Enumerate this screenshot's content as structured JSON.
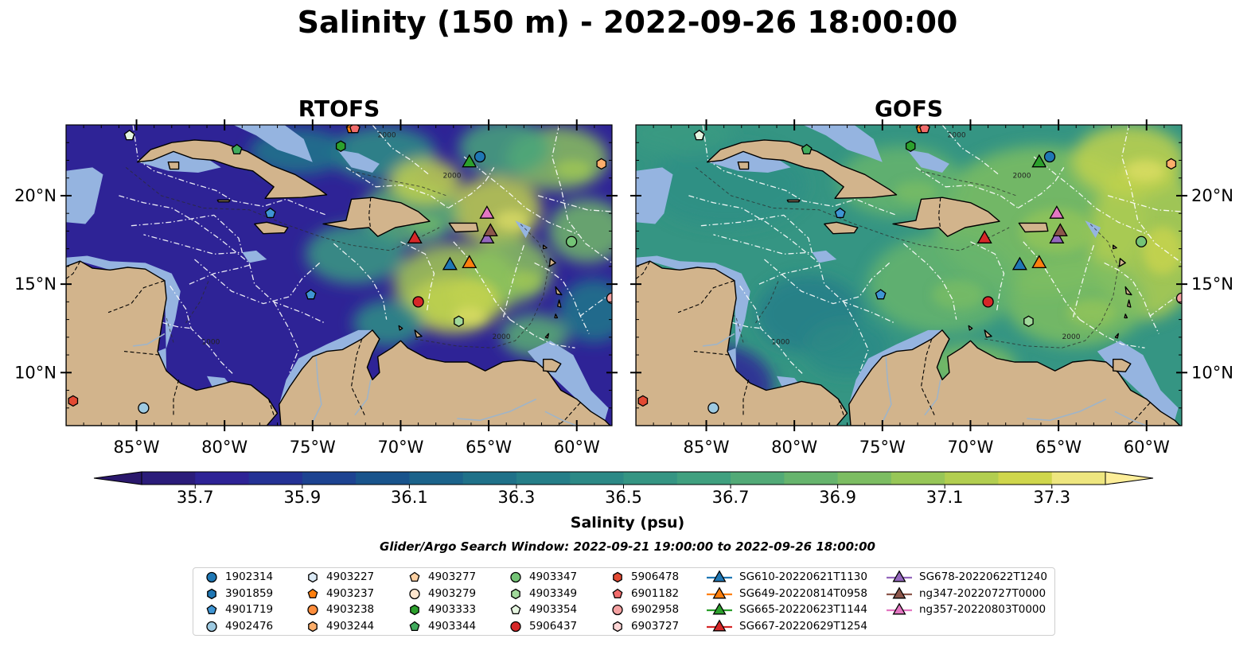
{
  "title": "Salinity (150 m) - 2022-09-26 18:00:00",
  "panels": [
    {
      "title": "RTOFS",
      "field": "rtofs"
    },
    {
      "title": "GOFS",
      "field": "gofs"
    }
  ],
  "map_extent": {
    "lon": [
      -89,
      -58
    ],
    "lat": [
      7,
      24
    ]
  },
  "lon_ticks": [
    {
      "value": -85,
      "label": "85°W"
    },
    {
      "value": -80,
      "label": "80°W"
    },
    {
      "value": -75,
      "label": "75°W"
    },
    {
      "value": -70,
      "label": "70°W"
    },
    {
      "value": -65,
      "label": "65°W"
    },
    {
      "value": -60,
      "label": "60°W"
    }
  ],
  "lat_ticks": [
    {
      "value": 20,
      "label": "20°N"
    },
    {
      "value": 15,
      "label": "15°N"
    },
    {
      "value": 10,
      "label": "10°N"
    }
  ],
  "colorbar": {
    "label": "Salinity (psu)",
    "min": 35.6,
    "max": 37.4,
    "step": 0.1,
    "tick_labels": [
      "35.7",
      "35.9",
      "36.1",
      "36.3",
      "36.5",
      "36.7",
      "36.9",
      "37.1",
      "37.3"
    ],
    "extend": "both",
    "colormap": "haline"
  },
  "colors": {
    "land": "#d2b48c",
    "shelf": "#95b4e0",
    "sea_low": "#2a186c",
    "sea_high": "#fdee99"
  },
  "search_window": "Glider/Argo Search Window: 2022-09-21 19:00:00 to 2022-09-26 18:00:00",
  "legend": {
    "columns": [
      [
        {
          "label": "1902314",
          "marker": "circle",
          "color": "#1f77b4"
        },
        {
          "label": "3901859",
          "marker": "hexagon",
          "color": "#1f77b4"
        },
        {
          "label": "4901719",
          "marker": "pentagon",
          "color": "#3f95d4"
        },
        {
          "label": "4902476",
          "marker": "circle",
          "color": "#9ecae1"
        }
      ],
      [
        {
          "label": "4903227",
          "marker": "hexagon",
          "color": "#dbeaf6"
        },
        {
          "label": "4903237",
          "marker": "pentagon",
          "color": "#ff7f0e"
        },
        {
          "label": "4903238",
          "marker": "circle",
          "color": "#fd8d3c"
        },
        {
          "label": "4903244",
          "marker": "hexagon",
          "color": "#fdae6b"
        }
      ],
      [
        {
          "label": "4903277",
          "marker": "pentagon",
          "color": "#fdd0a2"
        },
        {
          "label": "4903279",
          "marker": "circle",
          "color": "#fee6ce"
        },
        {
          "label": "4903333",
          "marker": "hexagon",
          "color": "#2ca02c"
        },
        {
          "label": "4903344",
          "marker": "pentagon",
          "color": "#41ab5d"
        }
      ],
      [
        {
          "label": "4903347",
          "marker": "circle",
          "color": "#74c476"
        },
        {
          "label": "4903349",
          "marker": "hexagon",
          "color": "#a1d99b"
        },
        {
          "label": "4903354",
          "marker": "pentagon",
          "color": "#e5f5e0"
        },
        {
          "label": "5906437",
          "marker": "circle",
          "color": "#d62728"
        }
      ],
      [
        {
          "label": "5906478",
          "marker": "hexagon",
          "color": "#e34a33"
        },
        {
          "label": "6901182",
          "marker": "pentagon",
          "color": "#f16b6b"
        },
        {
          "label": "6902958",
          "marker": "circle",
          "color": "#f4a1a1"
        },
        {
          "label": "6903727",
          "marker": "hexagon",
          "color": "#fcd5d5"
        }
      ],
      [
        {
          "label": "SG610-20220621T1130",
          "marker": "triangle",
          "color": "#1f77b4"
        },
        {
          "label": "SG649-20220814T0958",
          "marker": "triangle",
          "color": "#ff7f0e"
        },
        {
          "label": "SG665-20220623T1144",
          "marker": "triangle",
          "color": "#2ca02c"
        },
        {
          "label": "SG667-20220629T1254",
          "marker": "triangle",
          "color": "#d62728"
        }
      ],
      [
        {
          "label": "SG678-20220622T1240",
          "marker": "triangle",
          "color": "#9467bd"
        },
        {
          "label": "ng347-20220727T0000",
          "marker": "triangle",
          "color": "#8c564b"
        },
        {
          "label": "ng357-20220803T0000",
          "marker": "triangle",
          "color": "#e377c2"
        }
      ]
    ]
  },
  "observations": [
    {
      "id": "1902314",
      "lon": -65.5,
      "lat": 22.2
    },
    {
      "id": "4901719",
      "lon": -77.4,
      "lat": 19.0
    },
    {
      "id": "4902476",
      "lon": -84.6,
      "lat": 8.0
    },
    {
      "id": "4903237",
      "lon": -72.8,
      "lat": 23.8
    },
    {
      "id": "4903244",
      "lon": -58.6,
      "lat": 21.8
    },
    {
      "id": "4903333",
      "lon": -73.4,
      "lat": 22.8
    },
    {
      "id": "4903344",
      "lon": -79.3,
      "lat": 22.6
    },
    {
      "id": "4903347",
      "lon": -60.3,
      "lat": 17.4
    },
    {
      "id": "4903349",
      "lon": -66.7,
      "lat": 12.9
    },
    {
      "id": "4903354",
      "lon": -85.4,
      "lat": 23.4
    },
    {
      "id": "5906437",
      "lon": -69.0,
      "lat": 14.0
    },
    {
      "id": "5906478",
      "lon": -88.6,
      "lat": 8.4
    },
    {
      "id": "6901182",
      "lon": -72.6,
      "lat": 23.8
    },
    {
      "id": "6902958",
      "lon": -58.0,
      "lat": 14.2
    },
    {
      "id": "4901719",
      "lon": -75.1,
      "lat": 14.4
    },
    {
      "id": "SG610-20220621T1130",
      "lon": -67.2,
      "lat": 16.1
    },
    {
      "id": "SG649-20220814T0958",
      "lon": -66.1,
      "lat": 16.2
    },
    {
      "id": "SG665-20220623T1144",
      "lon": -66.1,
      "lat": 21.9
    },
    {
      "id": "SG667-20220629T1254",
      "lon": -69.2,
      "lat": 17.6
    },
    {
      "id": "SG678-20220622T1240",
      "lon": -65.1,
      "lat": 17.6
    },
    {
      "id": "ng347-20220727T0000",
      "lon": -64.9,
      "lat": 18.0
    },
    {
      "id": "ng357-20220803T0000",
      "lon": -65.1,
      "lat": 19.0
    }
  ]
}
